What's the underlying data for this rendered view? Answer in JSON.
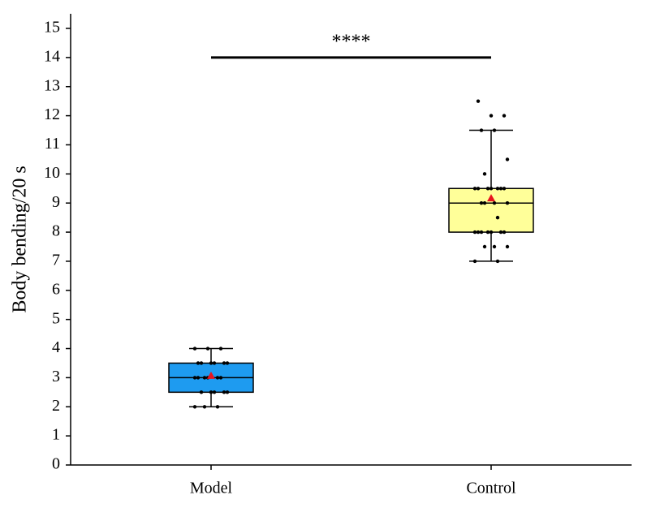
{
  "chart_data": {
    "type": "box",
    "ylabel": "Body bending/20 s",
    "categories": [
      "Model",
      "Control"
    ],
    "series": [
      {
        "color": "#1e9bf0",
        "min": 2,
        "q1": 2.5,
        "median": 3,
        "q3": 3.5,
        "max": 4,
        "mean": 3.07,
        "points": [
          2,
          2,
          2,
          2.5,
          2.5,
          2.5,
          2.5,
          2.5,
          3,
          3,
          3,
          3,
          3,
          3,
          3.5,
          3.5,
          3.5,
          3.5,
          3.5,
          3.5,
          4,
          4,
          4
        ]
      },
      {
        "color": "#ffff99",
        "min": 7,
        "q1": 8,
        "median": 9,
        "q3": 9.5,
        "max": 11.5,
        "mean": 9.17,
        "points": [
          7,
          7,
          7.5,
          7.5,
          7.5,
          8,
          8,
          8,
          8,
          8,
          8,
          8,
          8.5,
          9,
          9,
          9,
          9,
          9.5,
          9.5,
          9.5,
          9.5,
          9.5,
          9.5,
          9.5,
          10,
          10.5,
          11.5,
          11.5,
          12,
          12,
          12.5
        ]
      }
    ],
    "mean_color": "#e8141e",
    "point_color": "#000000",
    "annotation": {
      "text": "****",
      "y": 14
    },
    "ylim": [
      0,
      15
    ],
    "yticks": [
      0,
      1,
      2,
      3,
      4,
      5,
      6,
      7,
      8,
      9,
      10,
      11,
      12,
      13,
      14,
      15
    ]
  }
}
